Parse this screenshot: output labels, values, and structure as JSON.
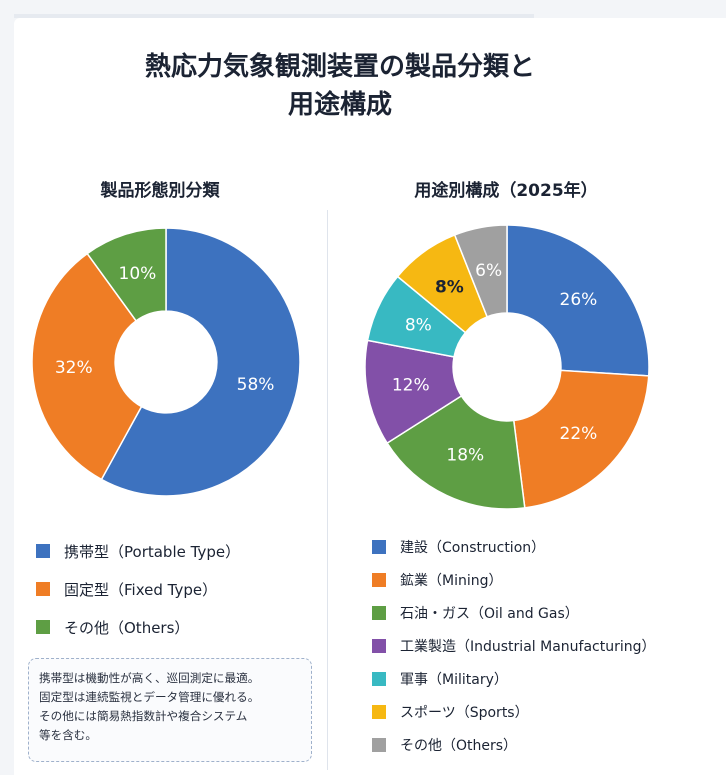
{
  "title": {
    "line1": "熱応力気象観測装置の製品分類と",
    "line2": "用途構成"
  },
  "colors": {
    "blue": "#3d72bf",
    "orange": "#ef7d25",
    "green": "#5e9e44",
    "purple": "#8250a8",
    "teal": "#38b9c2",
    "yellow": "#f6b812",
    "gray": "#a0a0a0"
  },
  "chart_data": [
    {
      "type": "pie",
      "title": "製品形態別分類",
      "hole": 0.38,
      "legend_position": "bottom",
      "slices": [
        {
          "name": "携帯型（Portable Type）",
          "value": 58,
          "label": "58%",
          "color": "#3d72bf"
        },
        {
          "name": "固定型（Fixed Type）",
          "value": 32,
          "label": "32%",
          "color": "#ef7d25"
        },
        {
          "name": "その他（Others）",
          "value": 10,
          "label": "10%",
          "color": "#5e9e44"
        }
      ]
    },
    {
      "type": "pie",
      "title": "用途別構成（2025年）",
      "hole": 0.38,
      "legend_position": "bottom",
      "slices": [
        {
          "name": "建設（Construction）",
          "value": 26,
          "label": "26%",
          "color": "#3d72bf"
        },
        {
          "name": "鉱業（Mining）",
          "value": 22,
          "label": "22%",
          "color": "#ef7d25"
        },
        {
          "name": "石油・ガス（Oil and Gas）",
          "value": 18,
          "label": "18%",
          "color": "#5e9e44"
        },
        {
          "name": "工業製造（Industrial Manufacturing）",
          "value": 12,
          "label": "12%",
          "color": "#8250a8"
        },
        {
          "name": "軍事（Military）",
          "value": 8,
          "label": "8%",
          "color": "#38b9c2"
        },
        {
          "name": "スポーツ（Sports）",
          "value": 8,
          "label": "8%",
          "color": "#f6b812"
        },
        {
          "name": "その他（Others）",
          "value": 6,
          "label": "6%",
          "color": "#a0a0a0"
        }
      ]
    }
  ],
  "note": {
    "lines": [
      "携帯型は機動性が高く、巡回測定に最適。",
      "固定型は連続監視とデータ管理に優れる。",
      "その他には簡易熱指数計や複合システム",
      "等を含む。"
    ]
  }
}
